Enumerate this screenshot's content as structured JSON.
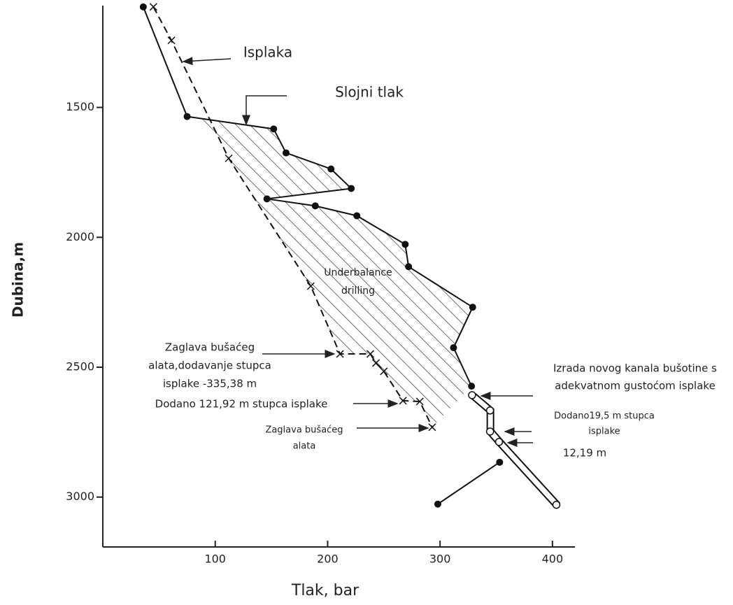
{
  "chart_data": {
    "type": "line",
    "xlabel": "Tlak, bar",
    "ylabel": "Dubina,m",
    "xlim": [
      0,
      420
    ],
    "ylim": [
      3200,
      1100
    ],
    "xticks": [
      100,
      200,
      300,
      400
    ],
    "yticks": [
      1500,
      2000,
      2500,
      3000
    ],
    "series": [
      {
        "name": "Slojni tlak",
        "color": "#111111",
        "marker": "dot",
        "dash": false,
        "x": [
          36,
          75,
          152,
          163,
          203,
          221,
          146,
          189,
          226,
          269,
          272,
          329,
          312,
          328
        ],
        "values": [
          1113,
          1535,
          1583,
          1675,
          1737,
          1812,
          1852,
          1879,
          1917,
          2027,
          2113,
          2269,
          2425,
          2573
        ]
      },
      {
        "name": "Isplaka",
        "color": "#111111",
        "marker": "cross",
        "dash": true,
        "x": [
          45,
          61,
          112,
          185,
          211,
          238,
          243,
          250,
          267,
          282,
          293
        ],
        "values": [
          1113,
          1242,
          1696,
          2188,
          2449,
          2449,
          2484,
          2516,
          2629,
          2632,
          2731
        ]
      },
      {
        "color": "#111111",
        "marker": "ring",
        "dash": false,
        "x": [
          326,
          342,
          342,
          350,
          401
        ],
        "values": [
          2613,
          2672,
          2753,
          2793,
          3035
        ]
      },
      {
        "color": "#111111",
        "marker": "dot",
        "dash": false,
        "x": [
          353,
          298
        ],
        "values": [
          2866,
          3027
        ]
      }
    ],
    "annotations": [
      [
        "Isplaka"
      ],
      [
        "Slojni tlak"
      ],
      [
        "Underbalance",
        "drilling"
      ],
      [
        "Zaglava bušaćeg",
        "alata,dodavanje stupca",
        "isplake -335,38 m"
      ],
      [
        "Dodano 121,92 m stupca isplake"
      ],
      [
        "Zaglava bušaćeg",
        "alata"
      ],
      [
        "Izrada novog kanala bušotine s",
        "adekvatnom gustoćom isplake"
      ],
      [
        "Dodano19,5 m stupca",
        "isplake"
      ],
      [
        "12,19 m"
      ]
    ]
  }
}
